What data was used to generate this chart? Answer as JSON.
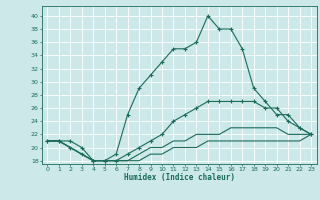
{
  "title": "",
  "xlabel": "Humidex (Indice chaleur)",
  "xlim": [
    -0.5,
    23.5
  ],
  "ylim": [
    17.5,
    41.5
  ],
  "yticks": [
    18,
    20,
    22,
    24,
    26,
    28,
    30,
    32,
    34,
    36,
    38,
    40
  ],
  "xticks": [
    0,
    1,
    2,
    3,
    4,
    5,
    6,
    7,
    8,
    9,
    10,
    11,
    12,
    13,
    14,
    15,
    16,
    17,
    18,
    19,
    20,
    21,
    22,
    23
  ],
  "bg_color": "#cce8e8",
  "line_color": "#1a6b5a",
  "grid_color": "#ffffff",
  "line1_x": [
    0,
    1,
    2,
    3,
    4,
    5,
    6,
    7,
    8,
    9,
    10,
    11,
    12,
    13,
    14,
    15,
    16,
    17,
    18,
    19,
    20,
    21,
    22,
    23
  ],
  "line1_y": [
    21,
    21,
    21,
    20,
    18,
    18,
    19,
    25,
    29,
    31,
    33,
    35,
    35,
    36,
    40,
    38,
    38,
    35,
    29,
    27,
    25,
    25,
    23,
    22
  ],
  "line2_x": [
    0,
    1,
    2,
    3,
    4,
    5,
    6,
    7,
    8,
    9,
    10,
    11,
    12,
    13,
    14,
    15,
    16,
    17,
    18,
    19,
    20,
    21,
    22,
    23
  ],
  "line2_y": [
    21,
    21,
    20,
    19,
    18,
    18,
    18,
    19,
    20,
    21,
    22,
    24,
    25,
    26,
    27,
    27,
    27,
    27,
    27,
    26,
    26,
    24,
    23,
    22
  ],
  "line3_x": [
    0,
    1,
    2,
    3,
    4,
    5,
    6,
    7,
    8,
    9,
    10,
    11,
    12,
    13,
    14,
    15,
    16,
    17,
    18,
    19,
    20,
    21,
    22,
    23
  ],
  "line3_y": [
    21,
    21,
    20,
    19,
    18,
    18,
    18,
    18,
    19,
    20,
    20,
    21,
    21,
    22,
    22,
    22,
    23,
    23,
    23,
    23,
    23,
    22,
    22,
    22
  ],
  "line4_x": [
    0,
    1,
    2,
    3,
    4,
    5,
    6,
    7,
    8,
    9,
    10,
    11,
    12,
    13,
    14,
    15,
    16,
    17,
    18,
    19,
    20,
    21,
    22,
    23
  ],
  "line4_y": [
    21,
    21,
    20,
    19,
    18,
    18,
    18,
    18,
    18,
    19,
    19,
    20,
    20,
    20,
    21,
    21,
    21,
    21,
    21,
    21,
    21,
    21,
    21,
    22
  ]
}
